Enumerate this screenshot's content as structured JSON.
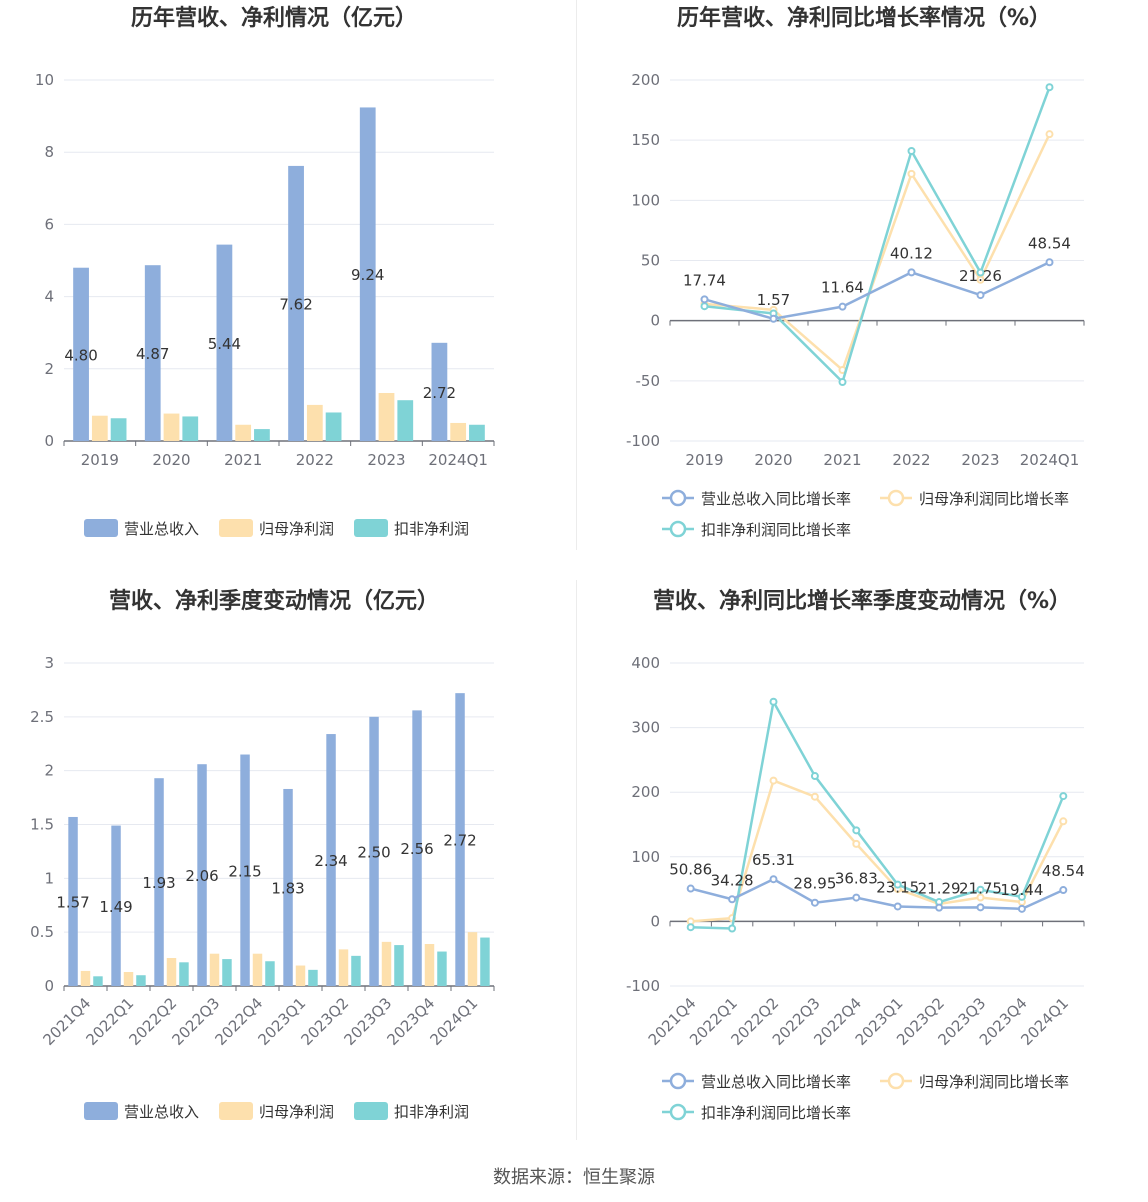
{
  "source_label": "数据来源：恒生聚源",
  "colors": {
    "revenue": "#8eaedc",
    "parent_profit": "#fde0ad",
    "deducted_profit": "#7fd3d6",
    "revenue_growth": "#8eaedc",
    "parent_growth": "#fde0ad",
    "deducted_growth": "#7fd3d6"
  },
  "chart_data": [
    {
      "type": "bar",
      "title": "历年营收、净利情况（亿元）",
      "categories": [
        "2019",
        "2020",
        "2021",
        "2022",
        "2023",
        "2024Q1"
      ],
      "series": [
        {
          "name": "营业总收入",
          "values": [
            4.8,
            4.87,
            5.44,
            7.62,
            9.24,
            2.72
          ],
          "labels": [
            "4.80",
            "4.87",
            "5.44",
            "7.62",
            "9.24",
            "2.72"
          ]
        },
        {
          "name": "归母净利润",
          "values": [
            0.7,
            0.76,
            0.45,
            1.0,
            1.33,
            0.5
          ]
        },
        {
          "name": "扣非净利润",
          "values": [
            0.63,
            0.68,
            0.33,
            0.79,
            1.13,
            0.45
          ]
        }
      ],
      "ylim": [
        0,
        10
      ],
      "yticks": [
        "0",
        "2",
        "4",
        "6",
        "8",
        "10"
      ],
      "grid": true,
      "legend": "bottom"
    },
    {
      "type": "line",
      "title": "历年营收、净利同比增长率情况（%）",
      "categories": [
        "2019",
        "2020",
        "2021",
        "2022",
        "2023",
        "2024Q1"
      ],
      "series": [
        {
          "name": "营业总收入同比增长率",
          "values": [
            17.74,
            1.57,
            11.64,
            40.12,
            21.26,
            48.54
          ],
          "labels": [
            "17.74",
            "1.57",
            "11.64",
            "40.12",
            "21.26",
            "48.54"
          ]
        },
        {
          "name": "归母净利润同比增长率",
          "values": [
            14,
            9,
            -41,
            122,
            34,
            155
          ]
        },
        {
          "name": "扣非净利润同比增长率",
          "values": [
            12,
            6,
            -51,
            141,
            40,
            194
          ]
        }
      ],
      "ylim": [
        -100,
        200
      ],
      "yticks": [
        "-100",
        "-50",
        "0",
        "50",
        "100",
        "150",
        "200"
      ],
      "grid": true,
      "legend": "bottom"
    },
    {
      "type": "bar",
      "title": "营收、净利季度变动情况（亿元）",
      "categories": [
        "2021Q4",
        "2022Q1",
        "2022Q2",
        "2022Q3",
        "2022Q4",
        "2023Q1",
        "2023Q2",
        "2023Q3",
        "2023Q4",
        "2024Q1"
      ],
      "series": [
        {
          "name": "营业总收入",
          "values": [
            1.57,
            1.49,
            1.93,
            2.06,
            2.15,
            1.83,
            2.34,
            2.5,
            2.56,
            2.72
          ],
          "labels": [
            "1.57",
            "1.49",
            "1.93",
            "2.06",
            "2.15",
            "1.83",
            "2.34",
            "2.50",
            "2.56",
            "2.72"
          ]
        },
        {
          "name": "归母净利润",
          "values": [
            0.14,
            0.13,
            0.26,
            0.3,
            0.3,
            0.19,
            0.34,
            0.41,
            0.39,
            0.5
          ]
        },
        {
          "name": "扣非净利润",
          "values": [
            0.09,
            0.1,
            0.22,
            0.25,
            0.23,
            0.15,
            0.28,
            0.38,
            0.32,
            0.45
          ]
        }
      ],
      "ylim": [
        0,
        3
      ],
      "yticks": [
        "0",
        "0.5",
        "1",
        "1.5",
        "2",
        "2.5",
        "3"
      ],
      "grid": true,
      "legend": "bottom"
    },
    {
      "type": "line",
      "title": "营收、净利同比增长率季度变动情况（%）",
      "categories": [
        "2021Q4",
        "2022Q1",
        "2022Q2",
        "2022Q3",
        "2022Q4",
        "2023Q1",
        "2023Q2",
        "2023Q3",
        "2023Q4",
        "2024Q1"
      ],
      "series": [
        {
          "name": "营业总收入同比增长率",
          "values": [
            50.86,
            34.28,
            65.31,
            28.95,
            36.83,
            23.15,
            21.29,
            21.75,
            19.44,
            48.54
          ],
          "labels": [
            "50.86",
            "34.28",
            "65.31",
            "28.95",
            "36.83",
            "23.15",
            "21.29",
            "21.75",
            "19.44",
            "48.54"
          ]
        },
        {
          "name": "归母净利润同比增长率",
          "values": [
            0,
            5,
            218,
            193,
            120,
            50,
            27,
            37,
            30,
            155
          ]
        },
        {
          "name": "扣非净利润同比增长率",
          "values": [
            -9,
            -11,
            340,
            225,
            141,
            57,
            30,
            49,
            38,
            194
          ]
        }
      ],
      "ylim": [
        -100,
        400
      ],
      "yticks": [
        "-100",
        "0",
        "100",
        "200",
        "300",
        "400"
      ],
      "grid": true,
      "legend": "bottom"
    }
  ]
}
